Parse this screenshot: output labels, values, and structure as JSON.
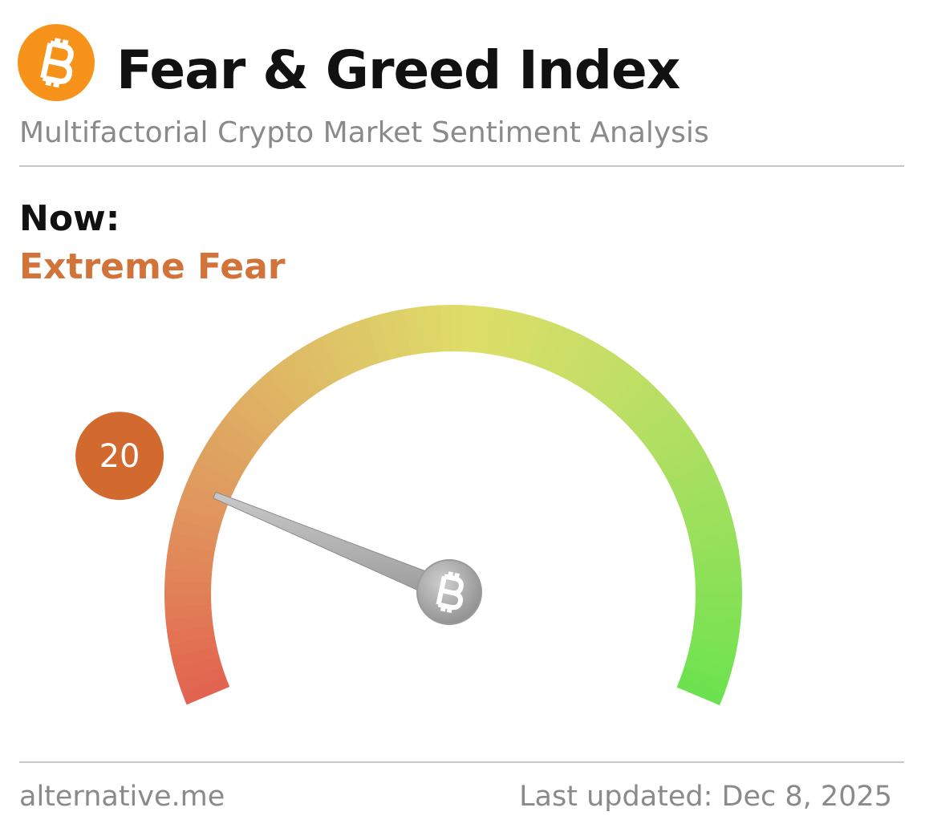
{
  "header": {
    "title": "Fear & Greed Index",
    "subtitle": "Multifactorial Crypto Market Sentiment Analysis"
  },
  "status": {
    "label": "Now:",
    "classification": "Extreme Fear"
  },
  "gauge": {
    "value": 20,
    "range": [
      0,
      100
    ]
  },
  "footer": {
    "source": "alternative.me",
    "updated": "Last updated: Dec 8, 2025"
  }
}
